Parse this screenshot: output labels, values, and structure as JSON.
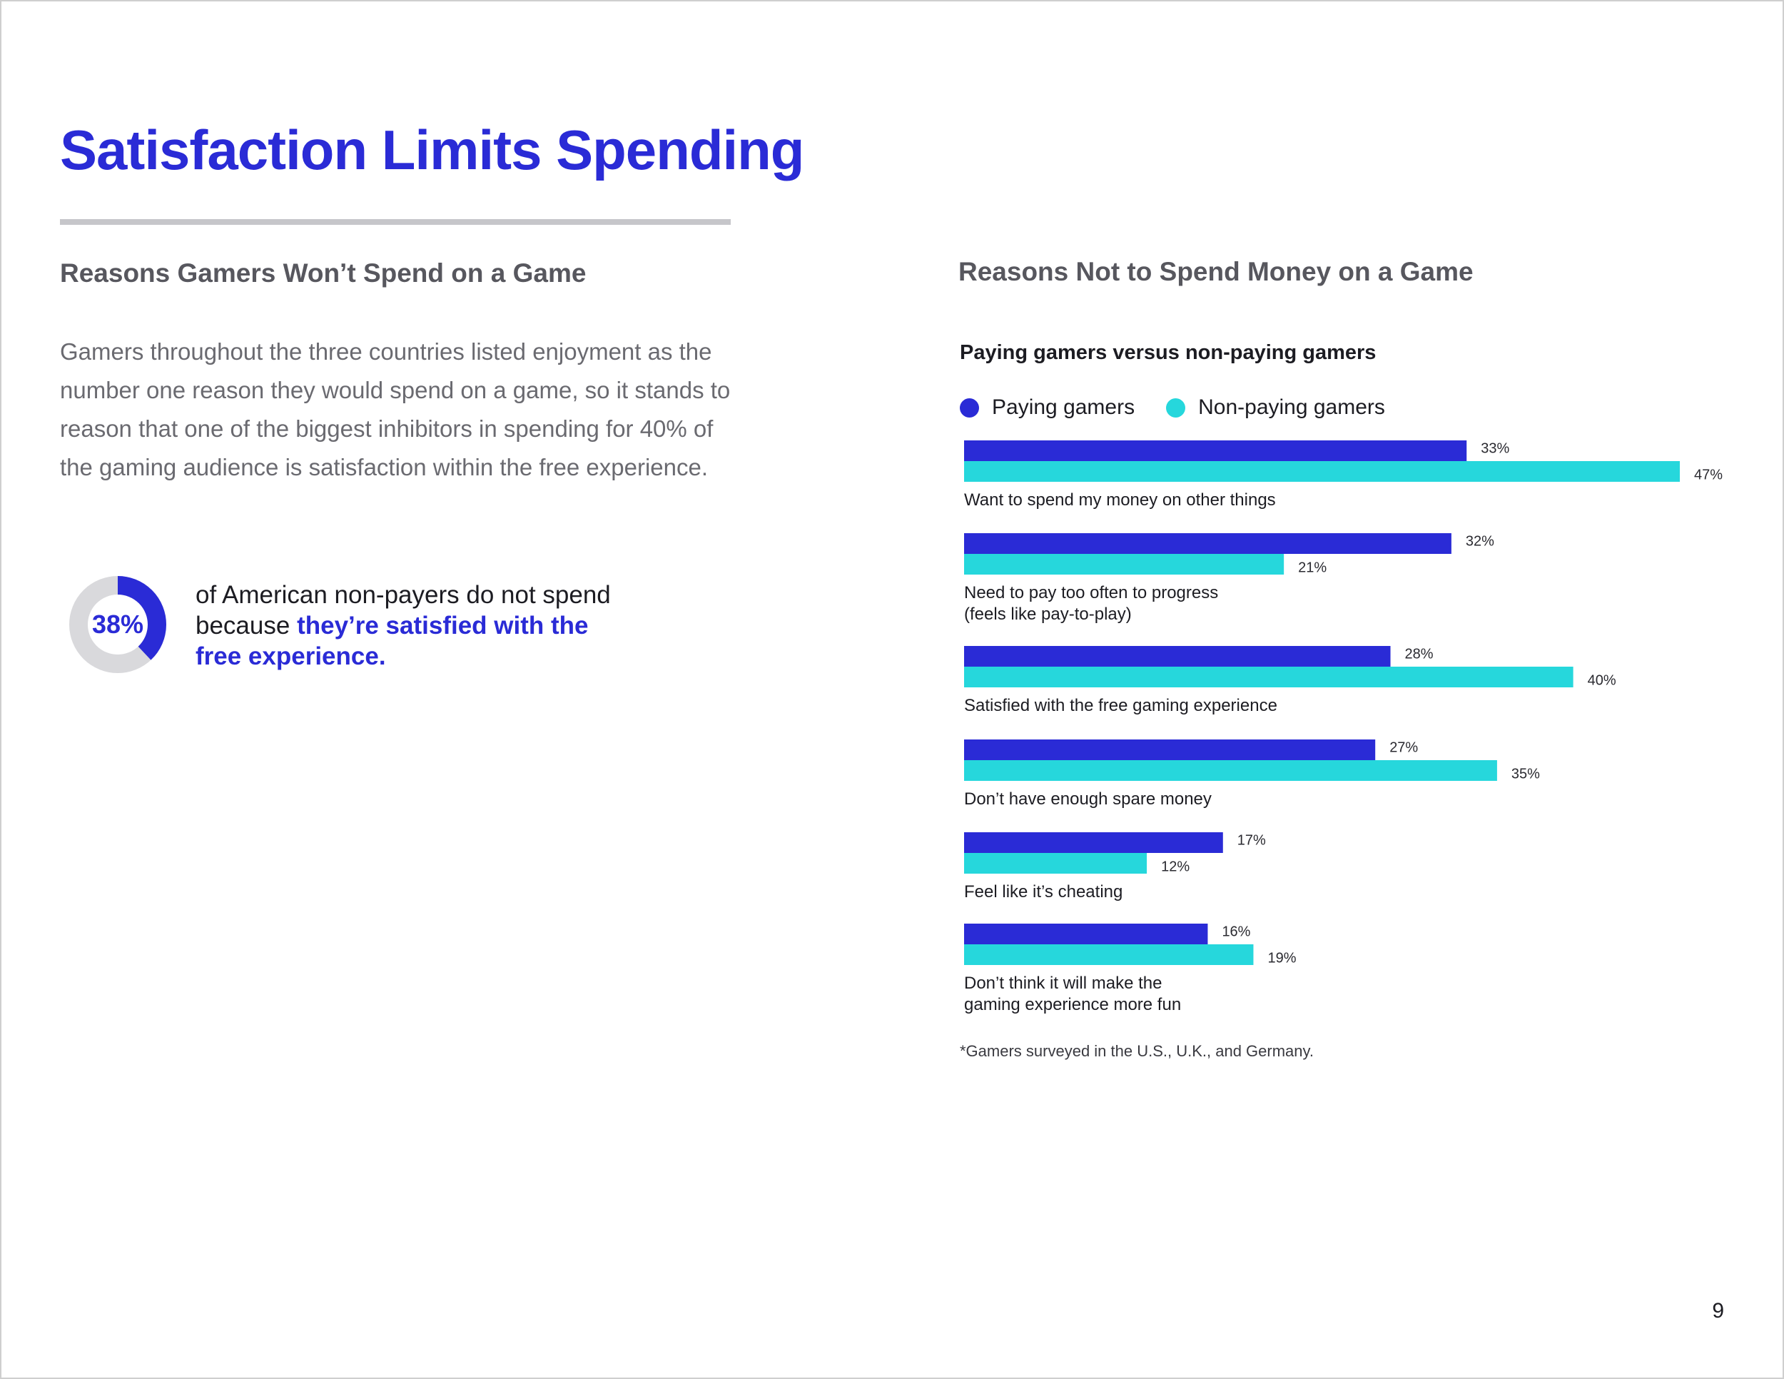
{
  "page": {
    "title": "Satisfaction Limits Spending",
    "left_heading": "Reasons Gamers Won’t Spend on a Game",
    "body": "Gamers throughout the three countries listed enjoyment as the number one reason they would spend on a game, so it stands to reason that one of the biggest inhibitors in spending for 40% of the gaming audience is satisfaction within the free experience.",
    "stat": {
      "value": 38,
      "label": "38%",
      "text_plain": "of American non-payers do not spend because ",
      "text_highlight": "they’re satisfied with the free experience."
    },
    "footnote": "*Gamers surveyed in the U.S., U.K., and Germany.",
    "page_number": "9"
  },
  "colors": {
    "accent": "#2a2bd6",
    "paying": "#2a2bd6",
    "non_paying": "#26d7dc",
    "donut_track": "#d9d9dc"
  },
  "chart_data": {
    "type": "bar",
    "orientation": "horizontal",
    "title": "Reasons Not to Spend Money on a Game",
    "subtitle": "Paying gamers versus non-paying gamers",
    "legend_position": "top-left",
    "grid": false,
    "xlim": [
      0,
      50
    ],
    "categories": [
      [
        "Want to spend my money on other things"
      ],
      [
        "Need to pay too often to progress",
        "(feels like pay-to-play)"
      ],
      [
        "Satisfied with the free gaming experience"
      ],
      [
        "Don’t have enough spare money"
      ],
      [
        "Feel like it’s cheating"
      ],
      [
        "Don’t think it will make the",
        "gaming experience more fun"
      ]
    ],
    "series": [
      {
        "name": "Paying gamers",
        "values": [
          33,
          32,
          28,
          27,
          17,
          16
        ],
        "labels": [
          "33%",
          "32%",
          "28%",
          "27%",
          "17%",
          "16%"
        ]
      },
      {
        "name": "Non-paying gamers",
        "values": [
          47,
          21,
          40,
          35,
          12,
          19
        ],
        "labels": [
          "47%",
          "21%",
          "40%",
          "35%",
          "12%",
          "19%"
        ]
      }
    ]
  }
}
